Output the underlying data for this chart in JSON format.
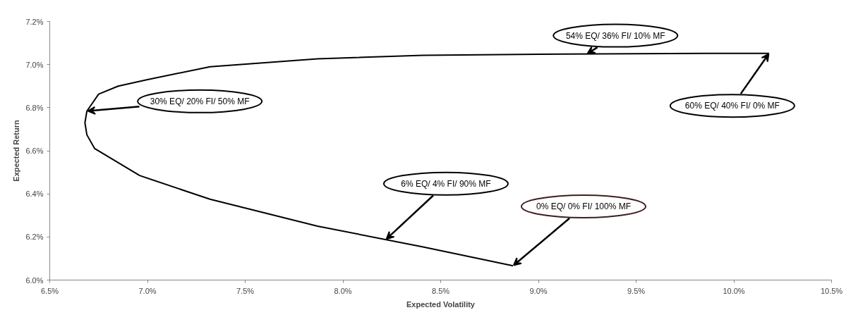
{
  "chart_data": {
    "type": "line",
    "xlabel": "Expected Volatility",
    "ylabel": "Expected Return",
    "x": [
      10.18,
      9.86,
      9.13,
      8.41,
      7.87,
      7.32,
      7.0,
      6.85,
      6.75,
      6.69,
      6.68,
      6.69,
      6.73,
      6.96,
      7.32,
      7.87,
      8.41,
      8.87
    ],
    "series": [
      {
        "color": "#000000",
        "values": [
          7.052,
          7.052,
          7.049,
          7.043,
          7.027,
          6.99,
          6.93,
          6.9,
          6.863,
          6.784,
          6.73,
          6.674,
          6.61,
          6.485,
          6.375,
          6.25,
          6.154,
          6.066
        ]
      }
    ],
    "xlim": [
      6.5,
      10.5
    ],
    "ylim": [
      6.0,
      7.2
    ],
    "xticks": [
      {
        "value": 6.5,
        "label": "6.5%"
      },
      {
        "value": 7.0,
        "label": "7.0%"
      },
      {
        "value": 7.5,
        "label": "7.5%"
      },
      {
        "value": 8.0,
        "label": "8.0%"
      },
      {
        "value": 8.5,
        "label": "8.5%"
      },
      {
        "value": 9.0,
        "label": "9.0%"
      },
      {
        "value": 9.5,
        "label": "9.5%"
      },
      {
        "value": 10.0,
        "label": "10.0%"
      },
      {
        "value": 10.5,
        "label": "10.5%"
      }
    ],
    "yticks": [
      {
        "value": 6.0,
        "label": "6.0%"
      },
      {
        "value": 6.2,
        "label": "6.2%"
      },
      {
        "value": 6.4,
        "label": "6.4%"
      },
      {
        "value": 6.6,
        "label": "6.6%"
      },
      {
        "value": 6.8,
        "label": "6.8%"
      },
      {
        "value": 7.0,
        "label": "7.0%"
      },
      {
        "value": 7.2,
        "label": "7.2%"
      }
    ],
    "grid": false,
    "marker": "none",
    "line_style": "solid",
    "annotations": [
      {
        "text": "54% EQ/ 36% FI/ 10% MF",
        "x": 9.25,
        "y": 7.05
      },
      {
        "text": "60% EQ/ 40% FI/ 0% MF",
        "x": 10.18,
        "y": 7.052
      },
      {
        "text": "30% EQ/ 20% FI/ 50% MF",
        "x": 6.69,
        "y": 6.784
      },
      {
        "text": "6% EQ/ 4% FI/ 90% MF",
        "x": 8.22,
        "y": 6.188
      },
      {
        "text": "0% EQ/ 0% FI/ 100% MF",
        "x": 8.87,
        "y": 6.066
      }
    ]
  }
}
